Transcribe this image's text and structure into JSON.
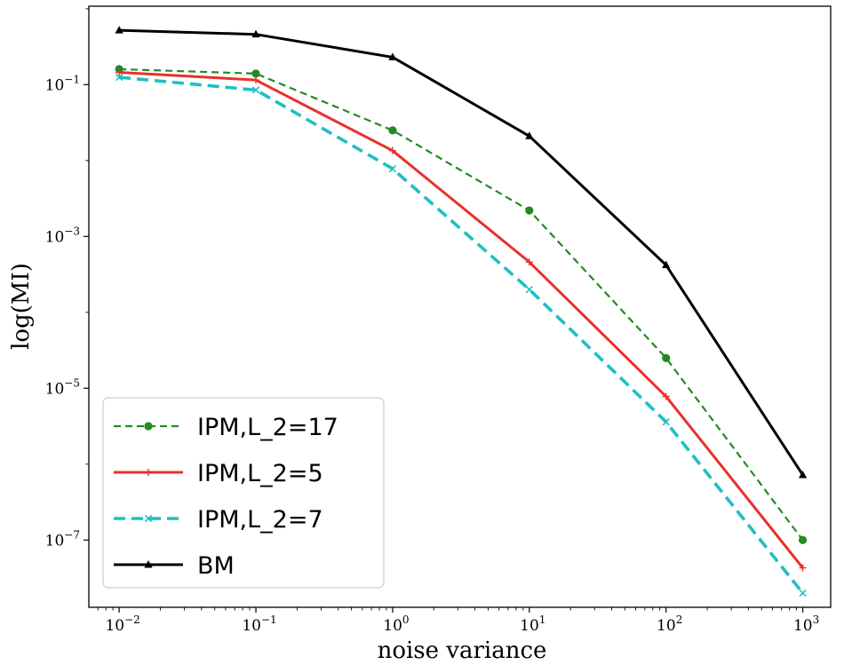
{
  "chart_data": {
    "type": "line",
    "xscale": "log",
    "yscale": "log",
    "xlabel": "noise variance",
    "ylabel": "log(MI)",
    "xlim": [
      0.006,
      1600
    ],
    "ylim": [
      1.3e-08,
      1.08
    ],
    "x": [
      0.01,
      0.1,
      1,
      10,
      100,
      1000
    ],
    "xticks": [
      {
        "value": 0.01,
        "base": "10",
        "exp": "−2"
      },
      {
        "value": 0.1,
        "base": "10",
        "exp": "−1"
      },
      {
        "value": 1,
        "base": "10",
        "exp": "0"
      },
      {
        "value": 10,
        "base": "10",
        "exp": "1"
      },
      {
        "value": 100,
        "base": "10",
        "exp": "2"
      },
      {
        "value": 1000,
        "base": "10",
        "exp": "3"
      }
    ],
    "yticks": [
      {
        "value": 0.1,
        "base": "10",
        "exp": "−1"
      },
      {
        "value": 0.001,
        "base": "10",
        "exp": "−3"
      },
      {
        "value": 1e-05,
        "base": "10",
        "exp": "−5"
      },
      {
        "value": 1e-07,
        "base": "10",
        "exp": "−7"
      }
    ],
    "legend_position": "lower-left",
    "series": [
      {
        "name": "IPM,L_2=17",
        "color": "#228b22",
        "style": "dashed",
        "marker": "circle",
        "values": [
          0.16,
          0.14,
          0.025,
          0.0022,
          2.5e-05,
          1e-07
        ]
      },
      {
        "name": "IPM,L_2=5",
        "color": "#e8312a",
        "style": "solid",
        "marker": "plus",
        "values": [
          0.145,
          0.115,
          0.0135,
          0.00046,
          7.8e-06,
          4.3e-08
        ]
      },
      {
        "name": "IPM,L_2=7",
        "color": "#1fbfc2",
        "style": "dashed-thick",
        "marker": "x",
        "values": [
          0.125,
          0.085,
          0.0078,
          0.0002,
          3.6e-06,
          2e-08
        ]
      },
      {
        "name": "BM",
        "color": "#000000",
        "style": "solid",
        "marker": "triangle",
        "values": [
          0.52,
          0.46,
          0.23,
          0.021,
          0.00042,
          7.2e-07
        ]
      }
    ]
  }
}
